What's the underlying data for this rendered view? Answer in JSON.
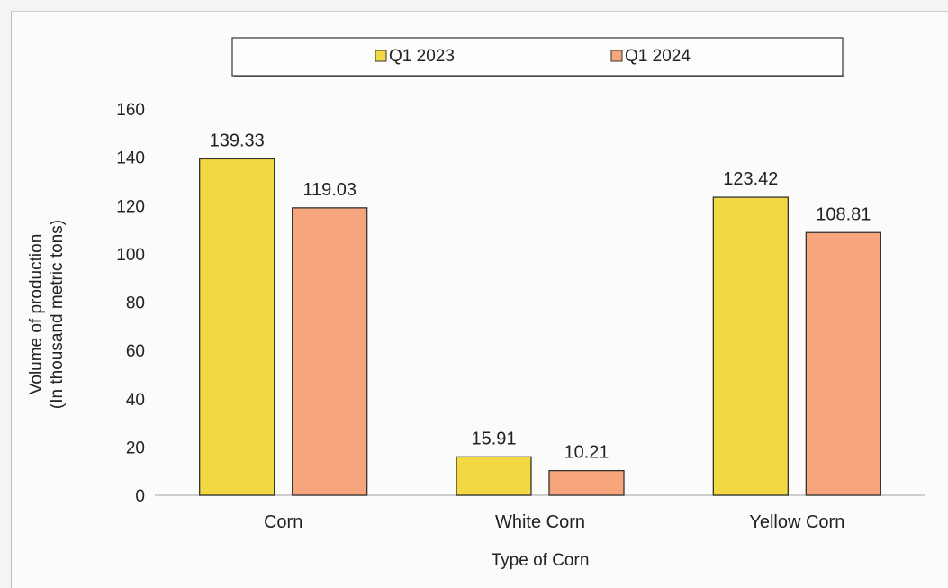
{
  "chart_data": {
    "type": "bar",
    "categories": [
      "Corn",
      "White Corn",
      "Yellow Corn"
    ],
    "series": [
      {
        "name": "Q1 2023",
        "values": [
          139.33,
          15.91,
          123.42
        ],
        "color": "#f2d843"
      },
      {
        "name": "Q1 2024",
        "values": [
          119.03,
          10.21,
          108.81
        ],
        "color": "#f6a57c"
      }
    ],
    "data_labels": [
      [
        "139.33",
        "15.91",
        "123.42"
      ],
      [
        "119.03",
        "10.21",
        "108.81"
      ]
    ],
    "title": "",
    "xlabel": "Type of Corn",
    "ylabel_lines": [
      "Volume of production",
      "(In thousand metric tons)"
    ],
    "ylim": [
      0,
      160
    ],
    "yticks": [
      0,
      20,
      40,
      60,
      80,
      100,
      120,
      140,
      160
    ],
    "ytick_labels": [
      "0",
      "20",
      "40",
      "60",
      "80",
      "100",
      "120",
      "140",
      "160"
    ],
    "grid": false,
    "legend_position": "top",
    "bar_outline_color": "#333333",
    "axis_color": "#bfbfbf"
  }
}
